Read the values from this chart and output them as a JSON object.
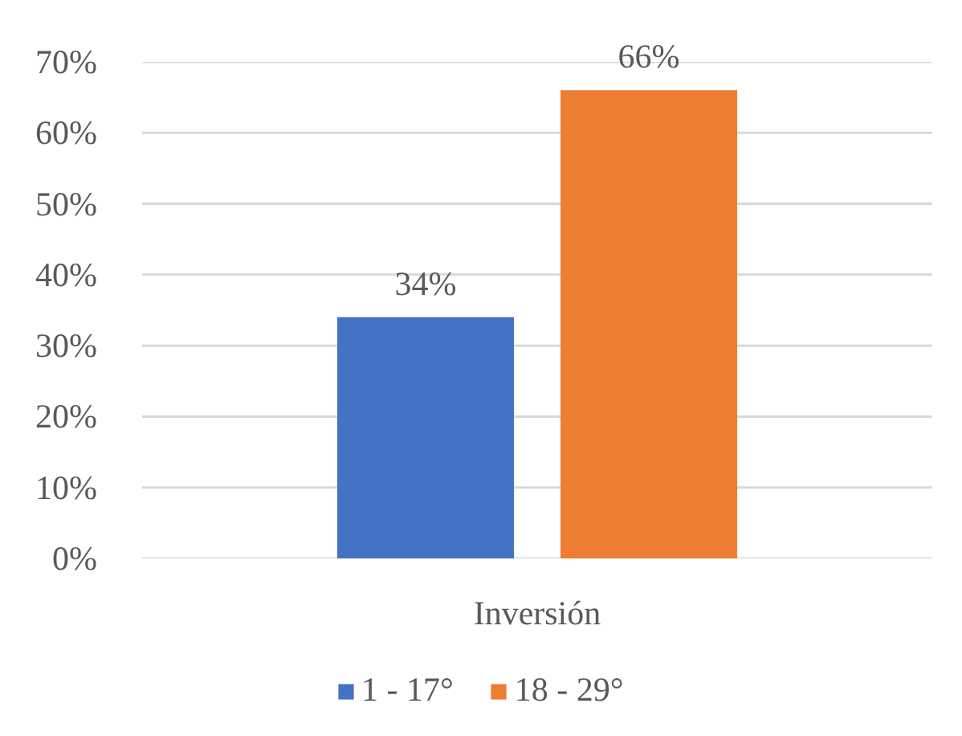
{
  "chart_data": {
    "type": "bar",
    "categories": [
      "Inversión"
    ],
    "series": [
      {
        "name": "1 - 17°",
        "color": "#4472c4",
        "values": [
          34
        ],
        "value_labels": [
          "34%"
        ]
      },
      {
        "name": "18 - 29°",
        "color": "#ed7d31",
        "values": [
          66
        ],
        "value_labels": [
          "66%"
        ]
      }
    ],
    "ylim": [
      0,
      70
    ],
    "yticks": [
      {
        "value": 0,
        "label": "0%"
      },
      {
        "value": 10,
        "label": "10%"
      },
      {
        "value": 20,
        "label": "20%"
      },
      {
        "value": 30,
        "label": "30%"
      },
      {
        "value": 40,
        "label": "40%"
      },
      {
        "value": 50,
        "label": "50%"
      },
      {
        "value": 60,
        "label": "60%"
      },
      {
        "value": 70,
        "label": "70%"
      }
    ],
    "grid": "y",
    "legend": "bottom"
  }
}
